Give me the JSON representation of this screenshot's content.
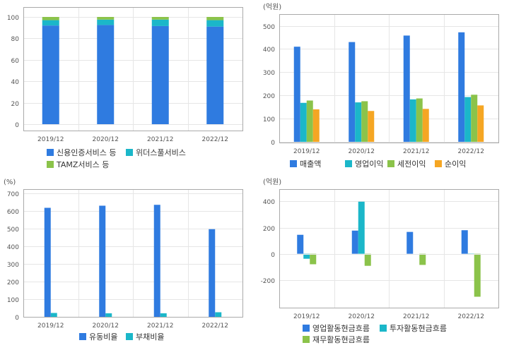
{
  "colors": {
    "blue": "#2f7be0",
    "cyan": "#1bb7c9",
    "green": "#8bc34a",
    "orange": "#f5a623",
    "grid": "#e6e6e6",
    "frame": "#aaaaaa",
    "axis_text": "#555555",
    "legend_text": "#333333"
  },
  "chart_data": [
    {
      "type": "bar",
      "stacked": true,
      "unit": "",
      "categories": [
        "2019/12",
        "2020/12",
        "2021/12",
        "2022/12"
      ],
      "ylim": [
        0,
        100
      ],
      "yticks": [
        0,
        20,
        40,
        60,
        80,
        100
      ],
      "series": [
        {
          "name": "신용인증서비스 등",
          "color": "#2f7be0",
          "values": [
            92,
            92.5,
            91.5,
            91
          ]
        },
        {
          "name": "위더스풀서비스",
          "color": "#1bb7c9",
          "values": [
            5,
            5,
            6,
            6
          ]
        },
        {
          "name": "TAMZ서비스 등",
          "color": "#8bc34a",
          "values": [
            3,
            2.5,
            2.5,
            3
          ]
        }
      ],
      "grid": true,
      "legend": "bottom"
    },
    {
      "type": "bar",
      "unit": "(억원)",
      "categories": [
        "2019/12",
        "2020/12",
        "2021/12",
        "2022/12"
      ],
      "ylim": [
        0,
        520
      ],
      "yticks": [
        0,
        100,
        200,
        300,
        400,
        500
      ],
      "series": [
        {
          "name": "매출액",
          "color": "#2f7be0",
          "values": [
            410,
            430,
            458,
            472
          ]
        },
        {
          "name": "영업이익",
          "color": "#1bb7c9",
          "values": [
            168,
            170,
            183,
            193
          ]
        },
        {
          "name": "세전이익",
          "color": "#8bc34a",
          "values": [
            178,
            175,
            187,
            203
          ]
        },
        {
          "name": "순이익",
          "color": "#f5a623",
          "values": [
            140,
            133,
            142,
            157
          ]
        }
      ],
      "grid": true,
      "legend": "bottom"
    },
    {
      "type": "bar",
      "unit": "(%)",
      "categories": [
        "2019/12",
        "2020/12",
        "2021/12",
        "2022/12"
      ],
      "ylim": [
        0,
        720
      ],
      "yticks": [
        0,
        100,
        200,
        300,
        400,
        500,
        600,
        700
      ],
      "series": [
        {
          "name": "유동비율",
          "color": "#2f7be0",
          "values": [
            618,
            630,
            635,
            497
          ]
        },
        {
          "name": "부채비율",
          "color": "#1bb7c9",
          "values": [
            22,
            20,
            20,
            26
          ]
        }
      ],
      "grid": true,
      "legend": "bottom"
    },
    {
      "type": "bar",
      "unit": "(억원)",
      "categories": [
        "2019/12",
        "2020/12",
        "2021/12",
        "2022/12"
      ],
      "ylim": [
        -390,
        440
      ],
      "yticks": [
        -200,
        0,
        200,
        400
      ],
      "series": [
        {
          "name": "영업활동현금흐름",
          "color": "#2f7be0",
          "values": [
            145,
            177,
            167,
            180
          ]
        },
        {
          "name": "투자활동현금흐름",
          "color": "#1bb7c9",
          "values": [
            -38,
            398,
            0,
            -3
          ]
        },
        {
          "name": "재무활동현금흐름",
          "color": "#8bc34a",
          "values": [
            -80,
            -92,
            -85,
            -328
          ]
        }
      ],
      "grid": true,
      "legend": "bottom"
    }
  ]
}
